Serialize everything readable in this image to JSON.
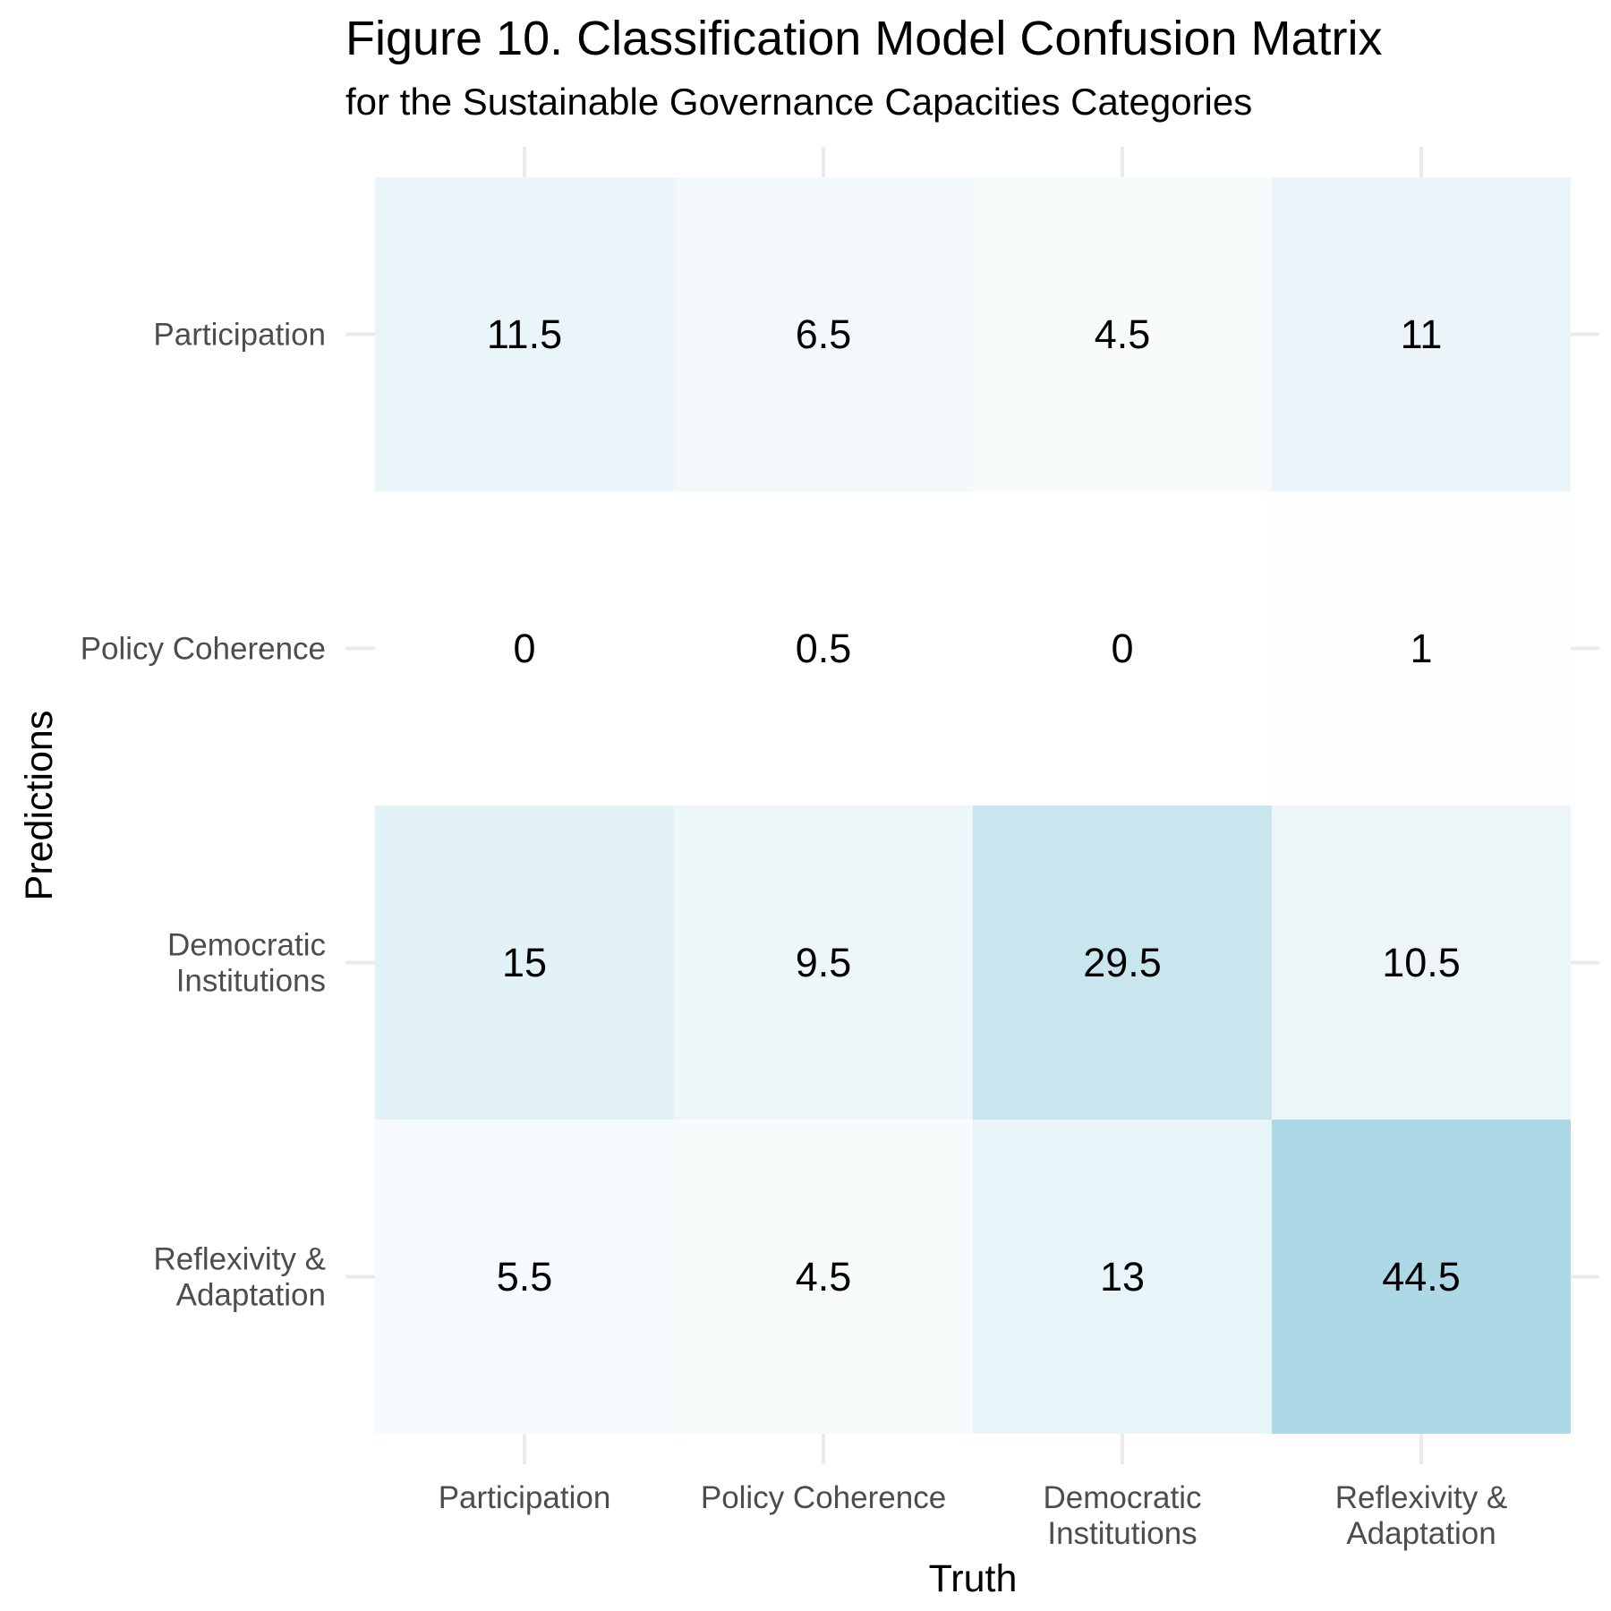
{
  "chart_data": {
    "type": "heatmap",
    "title": "Figure 10. Classification Model Confusion Matrix",
    "subtitle": "for the Sustainable Governance Capacities Categories",
    "xlabel": "Truth",
    "ylabel": "Predictions",
    "x_categories": [
      [
        "Participation"
      ],
      [
        "Policy Coherence"
      ],
      [
        "Democratic",
        "Institutions"
      ],
      [
        "Reflexivity &",
        "Adaptation"
      ]
    ],
    "y_categories": [
      [
        "Participation"
      ],
      [
        "Policy Coherence"
      ],
      [
        "Democratic",
        "Institutions"
      ],
      [
        "Reflexivity &",
        "Adaptation"
      ]
    ],
    "values": [
      [
        11.5,
        6.5,
        4.5,
        11
      ],
      [
        0,
        0.5,
        0,
        1
      ],
      [
        15,
        9.5,
        29.5,
        10.5
      ],
      [
        5.5,
        4.5,
        13,
        44.5
      ]
    ],
    "value_labels": [
      [
        "11.5",
        "6.5",
        "4.5",
        "11"
      ],
      [
        "0",
        "0.5",
        "0",
        "1"
      ],
      [
        "15",
        "9.5",
        "29.5",
        "10.5"
      ],
      [
        "5.5",
        "4.5",
        "13",
        "44.5"
      ]
    ],
    "color_low": "#ffffff",
    "color_high": "#add8e6",
    "grid": true,
    "legend": "none"
  }
}
